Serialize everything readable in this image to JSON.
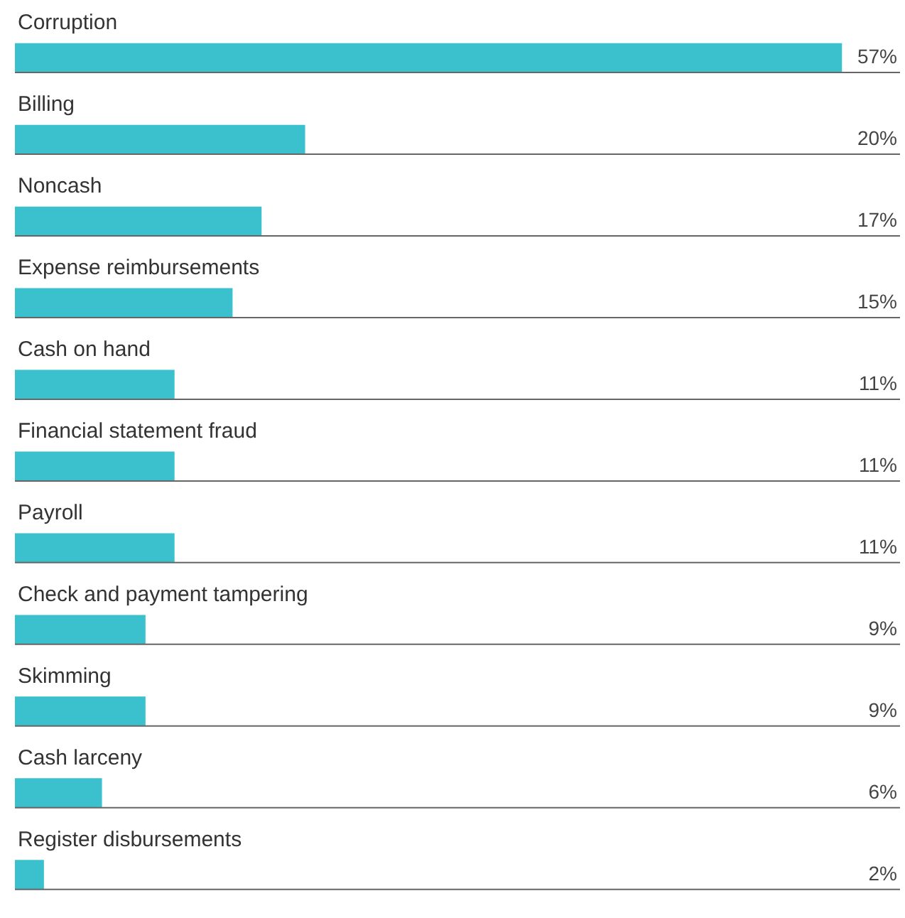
{
  "chart_data": {
    "type": "bar",
    "orientation": "horizontal",
    "categories": [
      "Corruption",
      "Billing",
      "Noncash",
      "Expense reimbursements",
      "Cash on hand",
      "Financial statement fraud",
      "Payroll",
      "Check and payment tampering",
      "Skimming",
      "Cash larceny",
      "Register disbursements"
    ],
    "values": [
      57,
      20,
      17,
      15,
      11,
      11,
      11,
      9,
      9,
      6,
      2
    ],
    "value_labels": [
      "57%",
      "20%",
      "17%",
      "15%",
      "11%",
      "11%",
      "11%",
      "9%",
      "9%",
      "6%",
      "2%"
    ],
    "color": "#3bc1cd",
    "xlim": [
      0,
      61
    ],
    "tick_labels": false,
    "grid": false
  }
}
